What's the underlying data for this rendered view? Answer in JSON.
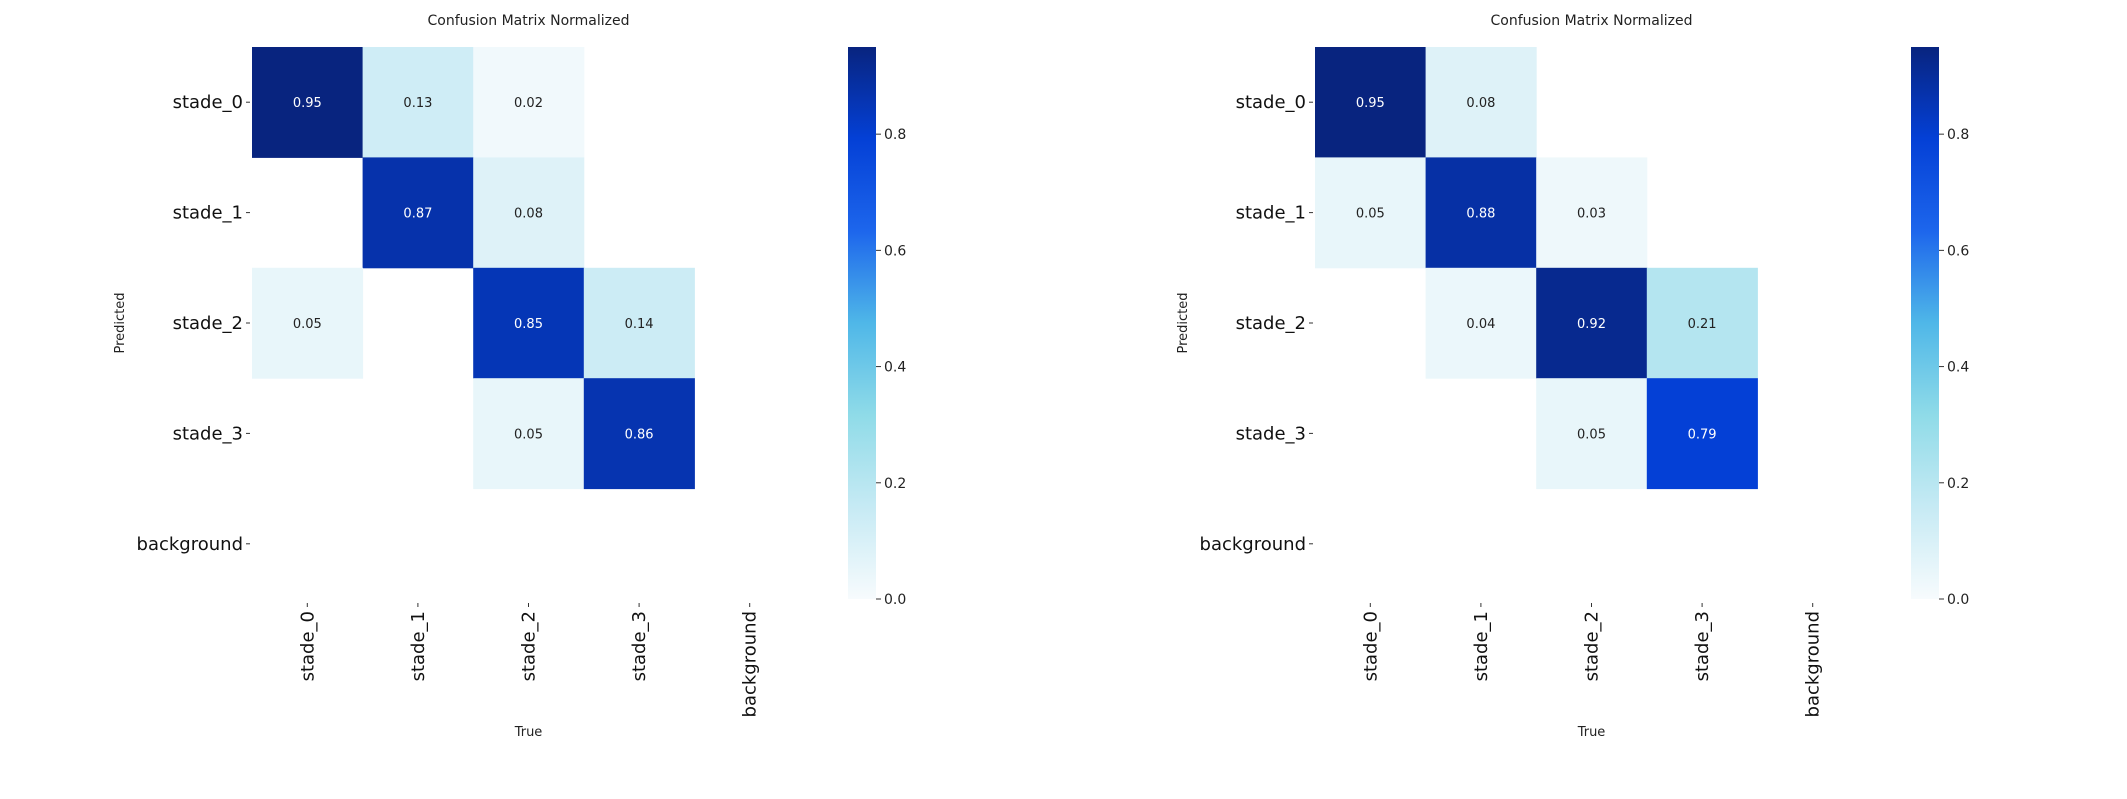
{
  "chart_data": [
    {
      "type": "heatmap",
      "title": "Confusion Matrix Normalized",
      "xlabel": "True",
      "ylabel": "Predicted",
      "x_categories": [
        "stade_0",
        "stade_1",
        "stade_2",
        "stade_3",
        "background"
      ],
      "y_categories": [
        "stade_0",
        "stade_1",
        "stade_2",
        "stade_3",
        "background"
      ],
      "values": [
        [
          0.95,
          0.13,
          0.02,
          null,
          null
        ],
        [
          null,
          0.87,
          0.08,
          null,
          null
        ],
        [
          0.05,
          null,
          0.85,
          0.14,
          null
        ],
        [
          null,
          null,
          0.05,
          0.86,
          null
        ],
        [
          null,
          null,
          null,
          null,
          null
        ]
      ],
      "colorbar": {
        "range": [
          0.0,
          0.95
        ],
        "ticks": [
          0.0,
          0.2,
          0.4,
          0.6,
          0.8
        ],
        "tick_labels": [
          "0.0",
          "0.2",
          "0.4",
          "0.6",
          "0.8"
        ]
      },
      "colormap": [
        "#f7fbfd",
        "#c6eaf4",
        "#8fdbe8",
        "#4fb7e8",
        "#1d66ec",
        "#0440d6",
        "#08247f"
      ]
    },
    {
      "type": "heatmap",
      "title": "Confusion Matrix Normalized",
      "xlabel": "True",
      "ylabel": "Predicted",
      "x_categories": [
        "stade_0",
        "stade_1",
        "stade_2",
        "stade_3",
        "background"
      ],
      "y_categories": [
        "stade_0",
        "stade_1",
        "stade_2",
        "stade_3",
        "background"
      ],
      "values": [
        [
          0.95,
          0.08,
          null,
          null,
          null
        ],
        [
          0.05,
          0.88,
          0.03,
          null,
          null
        ],
        [
          null,
          0.04,
          0.92,
          0.21,
          null
        ],
        [
          null,
          null,
          0.05,
          0.79,
          null
        ],
        [
          null,
          null,
          null,
          null,
          null
        ]
      ],
      "colorbar": {
        "range": [
          0.0,
          0.95
        ],
        "ticks": [
          0.0,
          0.2,
          0.4,
          0.6,
          0.8
        ],
        "tick_labels": [
          "0.0",
          "0.2",
          "0.4",
          "0.6",
          "0.8"
        ]
      },
      "colormap": [
        "#f7fbfd",
        "#c6eaf4",
        "#8fdbe8",
        "#4fb7e8",
        "#1d66ec",
        "#0440d6",
        "#08247f"
      ]
    }
  ]
}
